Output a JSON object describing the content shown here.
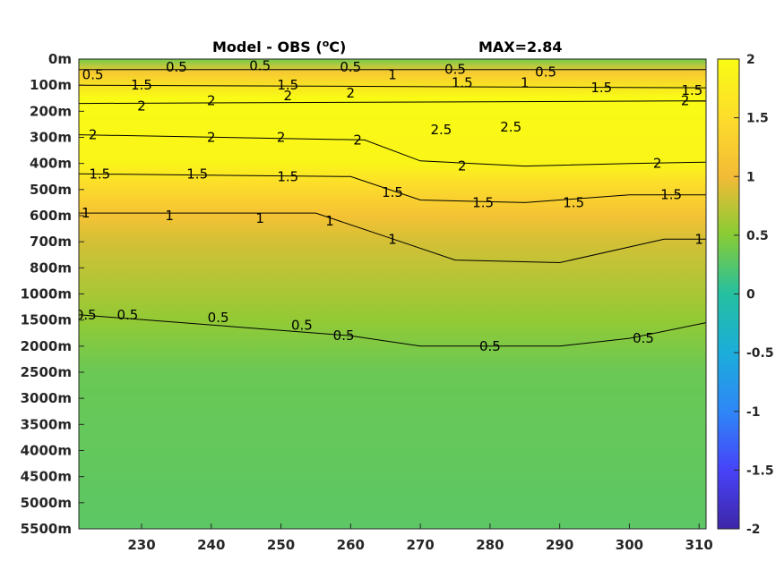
{
  "chart_data": {
    "type": "heatmap",
    "title": "Model - OBS (",
    "title_superscript": "o",
    "title_suffix": "C)",
    "max_label": "MAX=2.84",
    "xticks": [
      230,
      240,
      250,
      260,
      270,
      280,
      290,
      300,
      310
    ],
    "xlim": [
      221,
      311
    ],
    "yticks": [
      "0m",
      "100m",
      "200m",
      "300m",
      "400m",
      "500m",
      "600m",
      "700m",
      "800m",
      "1000m",
      "1500m",
      "2000m",
      "2500m",
      "3000m",
      "3500m",
      "4000m",
      "4500m",
      "5000m",
      "5500m"
    ],
    "colorbar": {
      "ticks": [
        2,
        1.5,
        1,
        0.5,
        0,
        -0.5,
        -1,
        -1.5,
        -2
      ],
      "labels": [
        "2",
        "1.5",
        "1",
        "0.5",
        "0",
        "-0.5",
        "-1",
        "-1.5",
        "-2"
      ],
      "range": [
        -2,
        2
      ],
      "colormap": "parula",
      "colors": [
        "#3e26a8",
        "#4743f8",
        "#2e87f7",
        "#1cadda",
        "#25c0a0",
        "#88cc35",
        "#f3bb36",
        "#fddd2b",
        "#f9fb15"
      ]
    },
    "layers": [
      {
        "depth_index": 0,
        "value": 0.4
      },
      {
        "depth_index": 0.5,
        "value": 1.2
      },
      {
        "depth_index": 1.5,
        "value": 2.0
      },
      {
        "depth_index": 4,
        "value": 1.9
      },
      {
        "depth_index": 4.8,
        "value": 1.5
      },
      {
        "depth_index": 6,
        "value": 1.1
      },
      {
        "depth_index": 7,
        "value": 0.85
      },
      {
        "depth_index": 10,
        "value": 0.55
      },
      {
        "depth_index": 12,
        "value": 0.35
      },
      {
        "depth_index": 18,
        "value": 0.28
      }
    ],
    "contours": [
      {
        "level": "0.5",
        "depth_indices": [
          [
            221,
            0.4
          ],
          [
            311,
            0.4
          ]
        ]
      },
      {
        "level": "1.5",
        "depth_indices": [
          [
            221,
            1.0
          ],
          [
            311,
            1.1
          ]
        ]
      },
      {
        "level": "2",
        "depth_indices": [
          [
            221,
            1.7
          ],
          [
            311,
            1.6
          ]
        ]
      },
      {
        "level": "2",
        "depth_indices": [
          [
            221,
            2.9
          ],
          [
            262,
            3.1
          ],
          [
            270,
            3.9
          ],
          [
            285,
            4.1
          ],
          [
            300,
            4.0
          ],
          [
            311,
            3.95
          ]
        ]
      },
      {
        "level": "1.5",
        "depth_indices": [
          [
            221,
            4.4
          ],
          [
            260,
            4.5
          ],
          [
            270,
            5.4
          ],
          [
            285,
            5.5
          ],
          [
            300,
            5.2
          ],
          [
            311,
            5.2
          ]
        ]
      },
      {
        "level": "1",
        "depth_indices": [
          [
            221,
            5.9
          ],
          [
            255,
            5.9
          ],
          [
            265,
            6.8
          ],
          [
            275,
            7.7
          ],
          [
            290,
            7.8
          ],
          [
            305,
            6.9
          ],
          [
            311,
            6.9
          ]
        ]
      },
      {
        "level": "0.5",
        "depth_indices": [
          [
            221,
            9.8
          ],
          [
            260,
            10.6
          ],
          [
            270,
            11.0
          ],
          [
            290,
            11.0
          ],
          [
            300,
            10.7
          ],
          [
            311,
            10.1
          ]
        ]
      }
    ],
    "contour_labels": [
      {
        "text": "0.5",
        "x": 223,
        "di": 0.6
      },
      {
        "text": "0.5",
        "x": 235,
        "di": 0.3
      },
      {
        "text": "0.5",
        "x": 247,
        "di": 0.25
      },
      {
        "text": "0.5",
        "x": 260,
        "di": 0.3
      },
      {
        "text": "0.5",
        "x": 275,
        "di": 0.4
      },
      {
        "text": "0.5",
        "x": 288,
        "di": 0.5
      },
      {
        "text": "1",
        "x": 266,
        "di": 0.6
      },
      {
        "text": "1",
        "x": 285,
        "di": 0.9
      },
      {
        "text": "1.5",
        "x": 230,
        "di": 1.0
      },
      {
        "text": "1.5",
        "x": 251,
        "di": 1.0
      },
      {
        "text": "1.5",
        "x": 276,
        "di": 0.9
      },
      {
        "text": "1.5",
        "x": 296,
        "di": 1.1
      },
      {
        "text": "1.5",
        "x": 309,
        "di": 1.2
      },
      {
        "text": "2",
        "x": 230,
        "di": 1.8
      },
      {
        "text": "2",
        "x": 240,
        "di": 1.6
      },
      {
        "text": "2",
        "x": 251,
        "di": 1.4
      },
      {
        "text": "2",
        "x": 260,
        "di": 1.3
      },
      {
        "text": "2",
        "x": 308,
        "di": 1.6
      },
      {
        "text": "2.5",
        "x": 273,
        "di": 2.7
      },
      {
        "text": "2.5",
        "x": 283,
        "di": 2.6
      },
      {
        "text": "2",
        "x": 223,
        "di": 2.9
      },
      {
        "text": "2",
        "x": 240,
        "di": 3.0
      },
      {
        "text": "2",
        "x": 250,
        "di": 3.0
      },
      {
        "text": "2",
        "x": 261,
        "di": 3.1
      },
      {
        "text": "2",
        "x": 276,
        "di": 4.1
      },
      {
        "text": "2",
        "x": 304,
        "di": 4.0
      },
      {
        "text": "1.5",
        "x": 224,
        "di": 4.4
      },
      {
        "text": "1.5",
        "x": 238,
        "di": 4.4
      },
      {
        "text": "1.5",
        "x": 251,
        "di": 4.5
      },
      {
        "text": "1.5",
        "x": 266,
        "di": 5.1
      },
      {
        "text": "1.5",
        "x": 279,
        "di": 5.5
      },
      {
        "text": "1.5",
        "x": 292,
        "di": 5.5
      },
      {
        "text": "1.5",
        "x": 306,
        "di": 5.2
      },
      {
        "text": "1",
        "x": 222,
        "di": 5.9
      },
      {
        "text": "1",
        "x": 234,
        "di": 6.0
      },
      {
        "text": "1",
        "x": 247,
        "di": 6.1
      },
      {
        "text": "1",
        "x": 257,
        "di": 6.2
      },
      {
        "text": "1",
        "x": 266,
        "di": 6.9
      },
      {
        "text": "1",
        "x": 310,
        "di": 6.9
      },
      {
        "text": "0.5",
        "x": 222,
        "di": 9.8
      },
      {
        "text": "0.5",
        "x": 228,
        "di": 9.8
      },
      {
        "text": "0.5",
        "x": 241,
        "di": 9.9
      },
      {
        "text": "0.5",
        "x": 253,
        "di": 10.2
      },
      {
        "text": "0.5",
        "x": 259,
        "di": 10.6
      },
      {
        "text": "0.5",
        "x": 280,
        "di": 11.0
      },
      {
        "text": "0.5",
        "x": 302,
        "di": 10.7
      }
    ]
  }
}
